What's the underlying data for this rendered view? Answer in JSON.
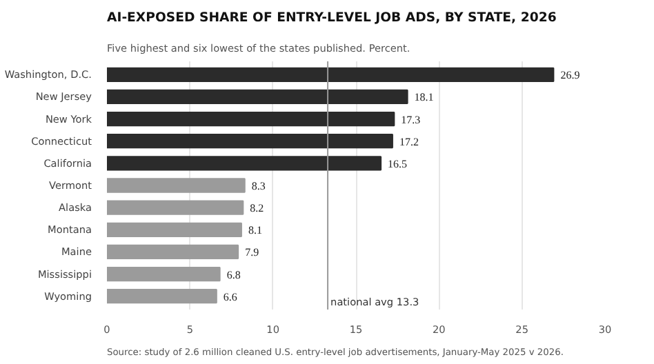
{
  "chart_data": {
    "type": "bar",
    "orientation": "horizontal",
    "title": "AI-EXPOSED SHARE OF ENTRY-LEVEL JOB ADS, BY STATE, 2026",
    "subtitle": "Five highest and six lowest of the states published. Percent.",
    "categories": [
      "Washington, D.C.",
      "New Jersey",
      "New York",
      "Connecticut",
      "California",
      "Vermont",
      "Alaska",
      "Montana",
      "Maine",
      "Mississippi",
      "Wyoming"
    ],
    "values": [
      26.9,
      18.1,
      17.3,
      17.2,
      16.5,
      8.3,
      8.2,
      8.1,
      7.9,
      6.8,
      6.6
    ],
    "colors": [
      "#2b2b2b",
      "#2b2b2b",
      "#2b2b2b",
      "#2b2b2b",
      "#2b2b2b",
      "#9b9b9b",
      "#9b9b9b",
      "#9b9b9b",
      "#9b9b9b",
      "#9b9b9b",
      "#9b9b9b"
    ],
    "xlim": [
      0,
      30
    ],
    "xticks": [
      0,
      5,
      10,
      15,
      20,
      25,
      30
    ],
    "grid": "x",
    "data_labels": true,
    "ref_lines": [
      {
        "axis": "x",
        "value": 13.3,
        "label": "national avg 13.3",
        "color": "#999999"
      }
    ],
    "annotations": [
      "Source: study of 2.6 million cleaned U.S. entry-level job advertisements, January-May 2025 v 2026."
    ]
  }
}
